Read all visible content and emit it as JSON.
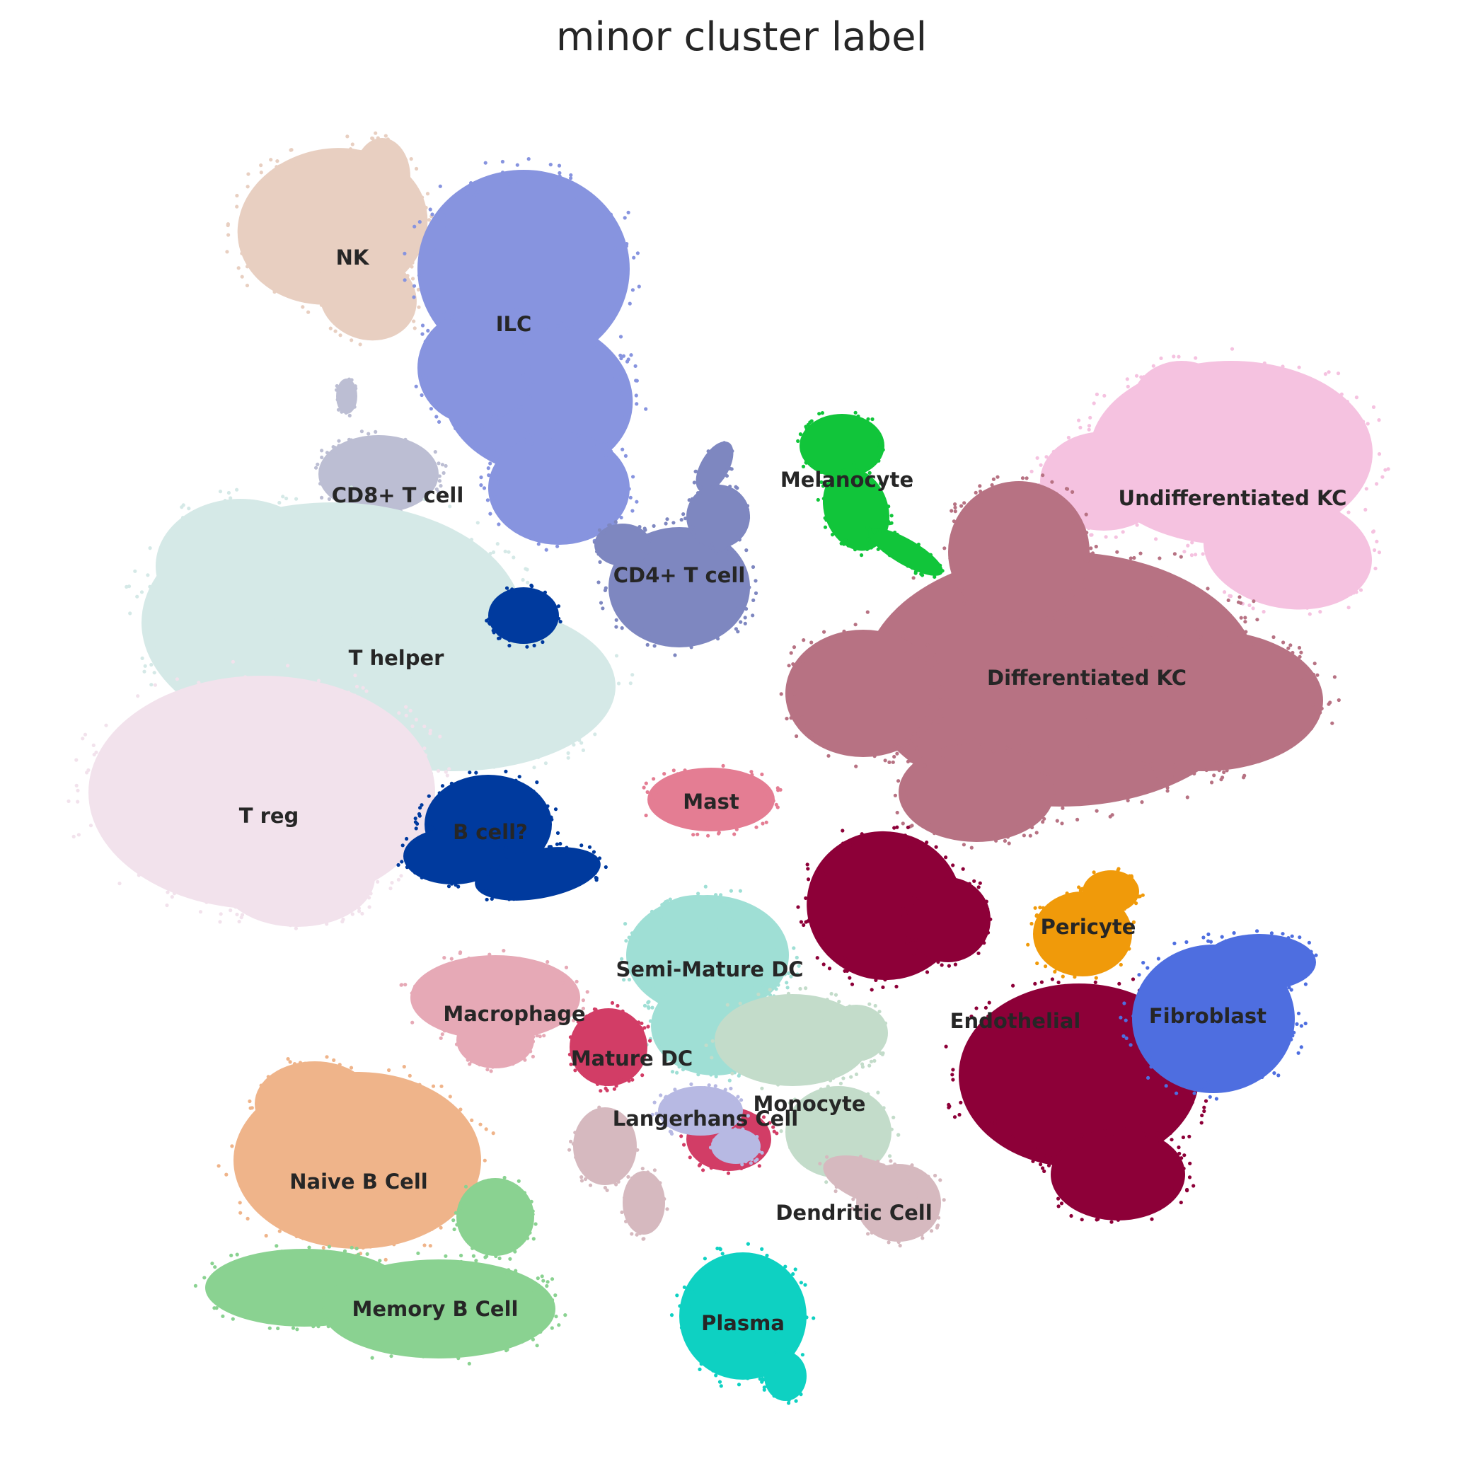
{
  "chart_data": {
    "type": "scatter",
    "title": "minor cluster label",
    "xlabel": "",
    "ylabel": "",
    "grid": false,
    "axes_visible": false,
    "legend": "on data",
    "clusters": [
      {
        "name": "NK",
        "color": "#e8cfc1"
      },
      {
        "name": "ILC",
        "color": "#8794df"
      },
      {
        "name": "CD8+ T cell",
        "color": "#bcbed3"
      },
      {
        "name": "T helper",
        "color": "#d5e9e7"
      },
      {
        "name": "T reg",
        "color": "#f2e2ec"
      },
      {
        "name": "CD4+ T cell",
        "color": "#7e87c0"
      },
      {
        "name": "B cell?",
        "color": "#003a9e"
      },
      {
        "name": "Mast",
        "color": "#e47d93"
      },
      {
        "name": "Melanocyte",
        "color": "#11c53a"
      },
      {
        "name": "Undifferentiated KC",
        "color": "#f5c2e0"
      },
      {
        "name": "Differentiated KC",
        "color": "#b77283"
      },
      {
        "name": "Endothelial",
        "color": "#8d0038"
      },
      {
        "name": "Pericyte",
        "color": "#f09a0a"
      },
      {
        "name": "Fibroblast",
        "color": "#4e6ee0"
      },
      {
        "name": "Macrophage",
        "color": "#e6a9b6"
      },
      {
        "name": "Semi-Mature DC",
        "color": "#9fdfd5"
      },
      {
        "name": "Mature DC",
        "color": "#d23d66"
      },
      {
        "name": "Monocyte",
        "color": "#c3dcca"
      },
      {
        "name": "Langerhans Cell",
        "color": "#b7b9e3"
      },
      {
        "name": "Dendritic Cell",
        "color": "#d6b9bf"
      },
      {
        "name": "Naive B Cell",
        "color": "#efb48a"
      },
      {
        "name": "Memory B Cell",
        "color": "#8ad291"
      },
      {
        "name": "Plasma",
        "color": "#0ed1c2"
      }
    ]
  }
}
